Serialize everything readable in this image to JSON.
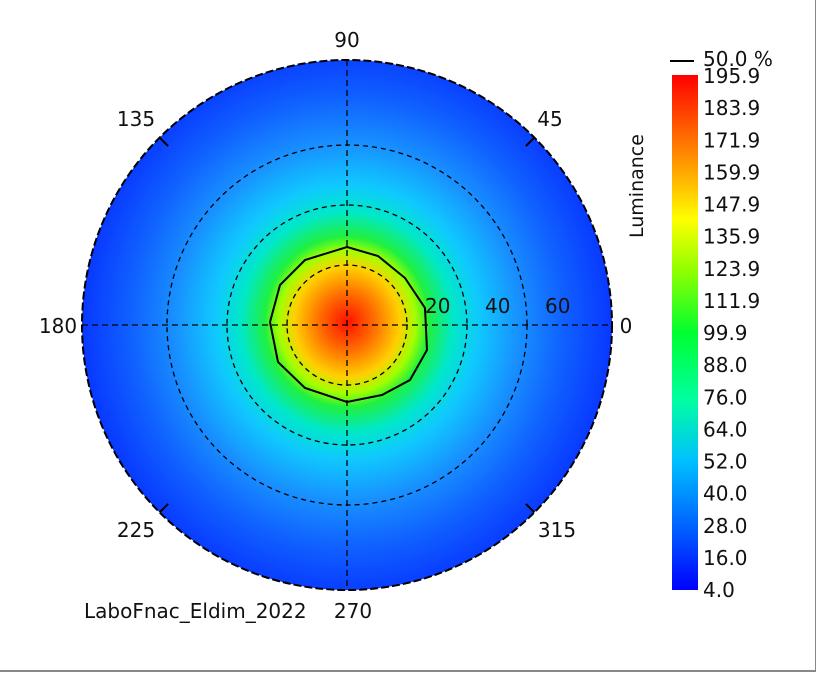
{
  "chart_data": {
    "type": "heatmap",
    "projection": "polar",
    "title": "LaboFnac_Eldim_2022",
    "angle_labels": [
      "0",
      "45",
      "90",
      "135",
      "180",
      "225",
      "270",
      "315"
    ],
    "radial_labels": [
      "20",
      "40",
      "60"
    ],
    "radial_rings": [
      20,
      40,
      60
    ],
    "colorbar": {
      "label": "Luminance",
      "min": 4.0,
      "max": 195.9,
      "ticks": [
        "195.9",
        "183.9",
        "171.9",
        "159.9",
        "147.9",
        "135.9",
        "123.9",
        "111.9",
        "99.9",
        "88.0",
        "76.0",
        "64.0",
        "52.0",
        "40.0",
        "28.0",
        "16.0",
        "4.0"
      ],
      "colormap": [
        "#0000ff",
        "#0060ff",
        "#00c0ff",
        "#00ffc0",
        "#00ff40",
        "#80ff00",
        "#ffff00",
        "#ffa000",
        "#ff4000",
        "#ff0000"
      ]
    },
    "contour": {
      "label": "50.0 %",
      "level_fraction": 0.5,
      "color": "#000000"
    },
    "peak_location": "center",
    "peak_value": 195.9,
    "edge_value_approx": 10
  }
}
